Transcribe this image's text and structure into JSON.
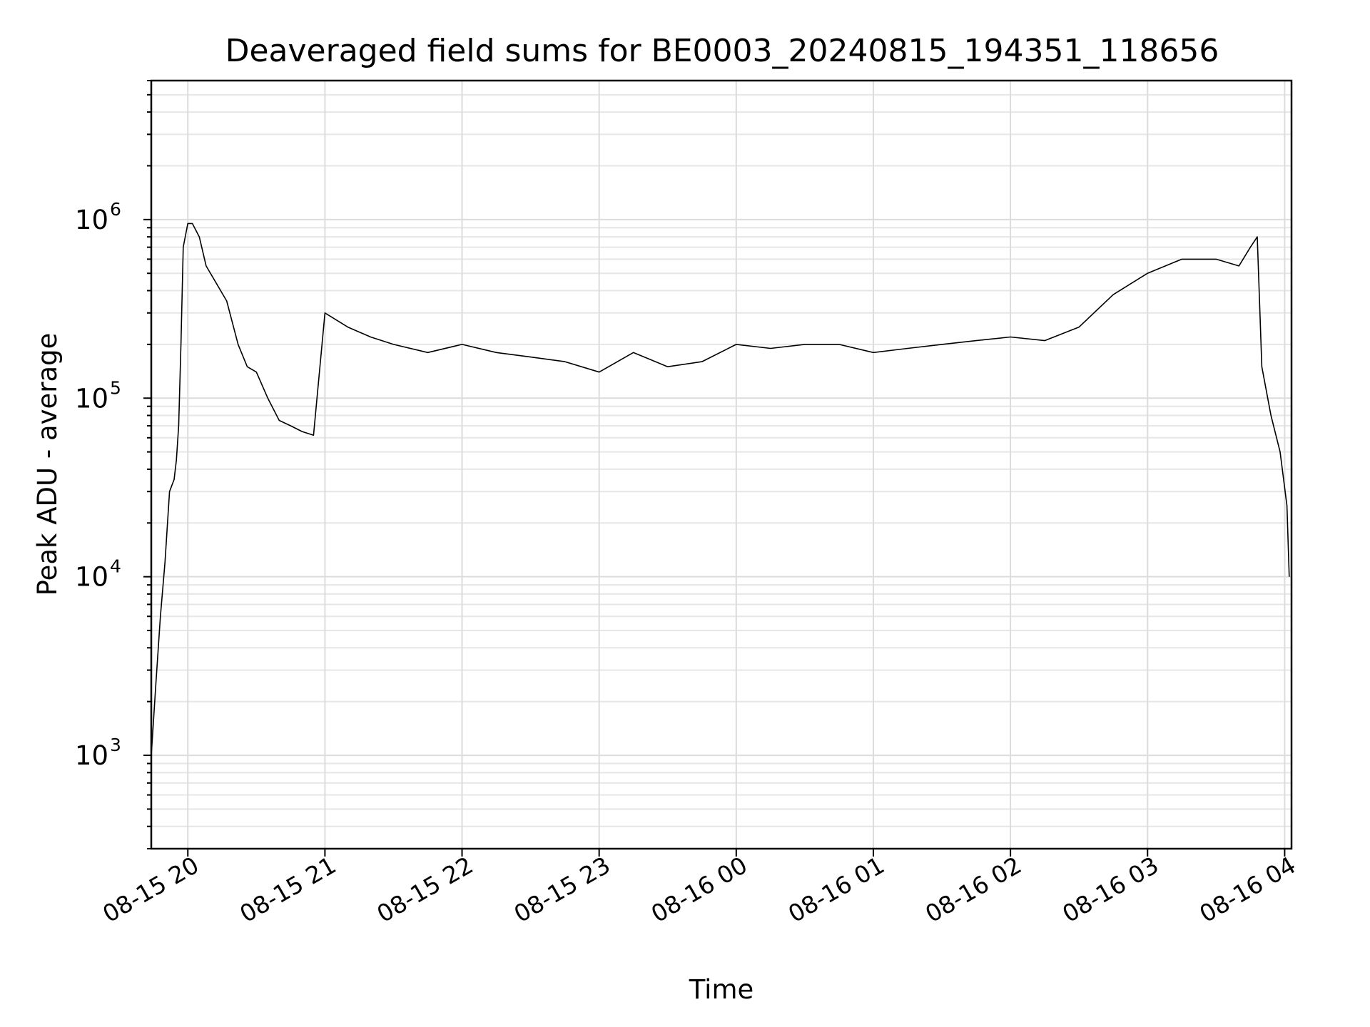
{
  "chart_data": {
    "type": "line",
    "title": "Deaveraged field sums for BE0003_20240815_194351_118656",
    "xlabel": "Time",
    "ylabel": "Peak ADU - average",
    "yscale": "log",
    "ylim": [
      300,
      6000000
    ],
    "xlim": [
      "2024-08-15 19:44",
      "2024-08-16 04:03"
    ],
    "grid": true,
    "line_color": "#000000",
    "x_ticks": [
      {
        "value": "2024-08-15 20:00",
        "label": "08-15 20"
      },
      {
        "value": "2024-08-15 21:00",
        "label": "08-15 21"
      },
      {
        "value": "2024-08-15 22:00",
        "label": "08-15 22"
      },
      {
        "value": "2024-08-15 23:00",
        "label": "08-15 23"
      },
      {
        "value": "2024-08-16 00:00",
        "label": "08-16 00"
      },
      {
        "value": "2024-08-16 01:00",
        "label": "08-16 01"
      },
      {
        "value": "2024-08-16 02:00",
        "label": "08-16 02"
      },
      {
        "value": "2024-08-16 03:00",
        "label": "08-16 03"
      },
      {
        "value": "2024-08-16 04:00",
        "label": "08-16 04"
      }
    ],
    "y_ticks": [
      {
        "value": 1000,
        "base": "10",
        "exp": "3"
      },
      {
        "value": 10000,
        "base": "10",
        "exp": "4"
      },
      {
        "value": 100000,
        "base": "10",
        "exp": "5"
      },
      {
        "value": 1000000,
        "base": "10",
        "exp": "6"
      }
    ],
    "series": [
      {
        "x": [
          "2024-08-15 19:44",
          "2024-08-15 19:46",
          "2024-08-15 19:48",
          "2024-08-15 19:50",
          "2024-08-15 19:52",
          "2024-08-15 19:54",
          "2024-08-15 19:55",
          "2024-08-15 19:56",
          "2024-08-15 19:57",
          "2024-08-15 19:58",
          "2024-08-15 20:00",
          "2024-08-15 20:02",
          "2024-08-15 20:05",
          "2024-08-15 20:08",
          "2024-08-15 20:12",
          "2024-08-15 20:17",
          "2024-08-15 20:22",
          "2024-08-15 20:26",
          "2024-08-15 20:30",
          "2024-08-15 20:35",
          "2024-08-15 20:40",
          "2024-08-15 20:45",
          "2024-08-15 20:50",
          "2024-08-15 20:55",
          "2024-08-15 21:00",
          "2024-08-15 21:10",
          "2024-08-15 21:20",
          "2024-08-15 21:30",
          "2024-08-15 21:45",
          "2024-08-15 22:00",
          "2024-08-15 22:15",
          "2024-08-15 22:30",
          "2024-08-15 22:45",
          "2024-08-15 23:00",
          "2024-08-15 23:15",
          "2024-08-15 23:30",
          "2024-08-15 23:45",
          "2024-08-16 00:00",
          "2024-08-16 00:15",
          "2024-08-16 00:30",
          "2024-08-16 00:45",
          "2024-08-16 01:00",
          "2024-08-16 01:15",
          "2024-08-16 01:30",
          "2024-08-16 01:45",
          "2024-08-16 02:00",
          "2024-08-16 02:15",
          "2024-08-16 02:30",
          "2024-08-16 02:45",
          "2024-08-16 03:00",
          "2024-08-16 03:15",
          "2024-08-16 03:30",
          "2024-08-16 03:40",
          "2024-08-16 03:45",
          "2024-08-16 03:48",
          "2024-08-16 03:50",
          "2024-08-16 03:54",
          "2024-08-16 03:58",
          "2024-08-16 04:01",
          "2024-08-16 04:02"
        ],
        "y": [
          1000,
          2500,
          6000,
          12000,
          30000,
          35000,
          45000,
          70000,
          200000,
          700000,
          950000,
          950000,
          800000,
          550000,
          450000,
          350000,
          200000,
          150000,
          140000,
          100000,
          75000,
          70000,
          65000,
          62000,
          300000,
          250000,
          220000,
          200000,
          180000,
          200000,
          180000,
          170000,
          160000,
          140000,
          180000,
          150000,
          160000,
          200000,
          190000,
          200000,
          200000,
          180000,
          190000,
          200000,
          210000,
          220000,
          210000,
          250000,
          380000,
          500000,
          600000,
          600000,
          550000,
          700000,
          800000,
          150000,
          80000,
          50000,
          25000,
          10000
        ]
      }
    ]
  }
}
